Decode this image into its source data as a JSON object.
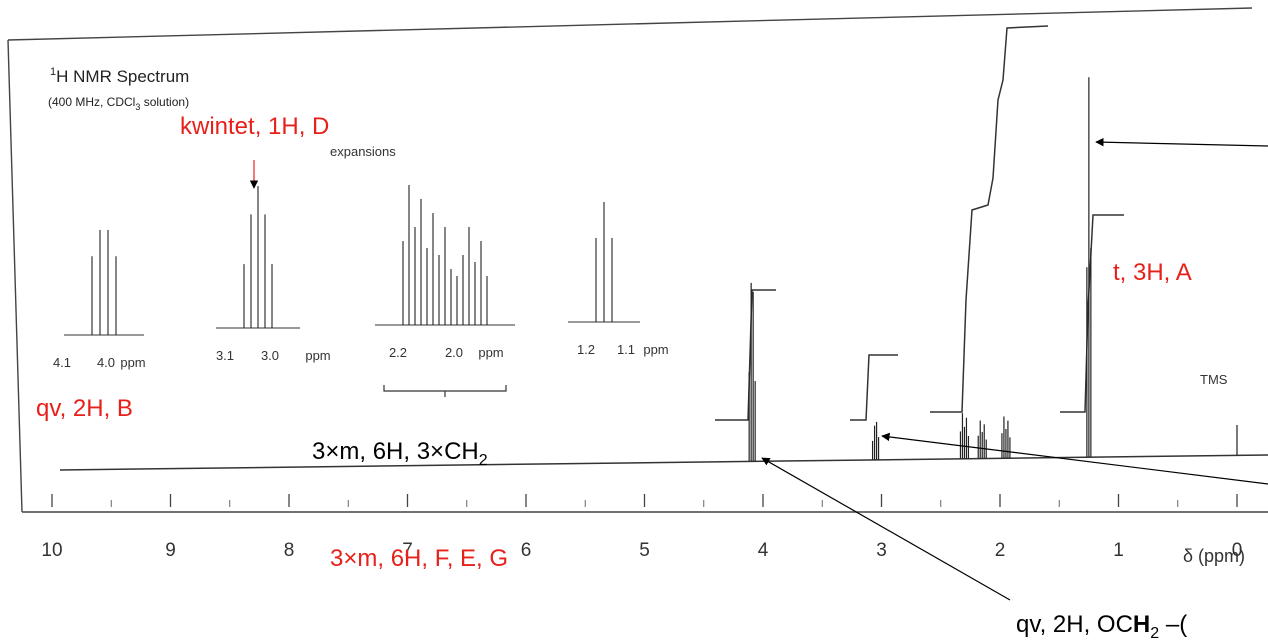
{
  "spectrum": {
    "title_prefix": "1",
    "title_main": "H NMR Spectrum",
    "conditions_prefix": "(400 MHz, CDCl",
    "conditions_sub": "3",
    "conditions_suffix": " solution)",
    "expansions_label": "expansions",
    "tms_label": "TMS",
    "axis_label": "δ (ppm)"
  },
  "chart_data": {
    "type": "line",
    "x_axis": {
      "label": "δ (ppm)",
      "reversed": true,
      "range": [
        10,
        0
      ],
      "ticks": [
        10,
        9,
        8,
        7,
        6,
        5,
        4,
        3,
        2,
        1,
        0
      ]
    },
    "peaks": [
      {
        "shift": 4.1,
        "multiplicity": "quartet",
        "height": 0.47
      },
      {
        "shift": 3.05,
        "multiplicity": "quintet",
        "height": 0.1
      },
      {
        "shift": 2.3,
        "multiplicity": "multiplet",
        "height": 0.12
      },
      {
        "shift": 2.15,
        "multiplicity": "multiplet",
        "height": 0.1
      },
      {
        "shift": 1.95,
        "multiplicity": "multiplet",
        "height": 0.11
      },
      {
        "shift": 1.25,
        "multiplicity": "triplet",
        "height": 1.0
      },
      {
        "shift": 0.0,
        "multiplicity": "singlet",
        "height": 0.08
      }
    ],
    "expansions": [
      {
        "tick_labels": [
          "4.1",
          "4.0",
          "ppm"
        ],
        "pattern": "quartet"
      },
      {
        "tick_labels": [
          "3.1",
          "3.0",
          "ppm"
        ],
        "pattern": "quintet"
      },
      {
        "tick_labels": [
          "2.2",
          "2.0",
          "ppm"
        ],
        "pattern": "multiplet"
      },
      {
        "tick_labels": [
          "1.2",
          "1.1",
          "ppm"
        ],
        "pattern": "triplet"
      }
    ]
  },
  "annotations": {
    "kwintet": "kwintet, 1H, D",
    "qv_b": "qv, 2H, B",
    "multiplet_main": "3×m, 6H, 3×CH",
    "multiplet_sub": "2",
    "triplet": "t, 3H, A",
    "fe_g": "3×m, 6H, F, E, G",
    "qv_och2_main": "qv, 2H, OC",
    "qv_och2_bold": "H",
    "qv_och2_sub": "2",
    "qv_och2_tail": " –("
  },
  "colors": {
    "annotation_red": "#e8201a",
    "ink": "#222222"
  }
}
